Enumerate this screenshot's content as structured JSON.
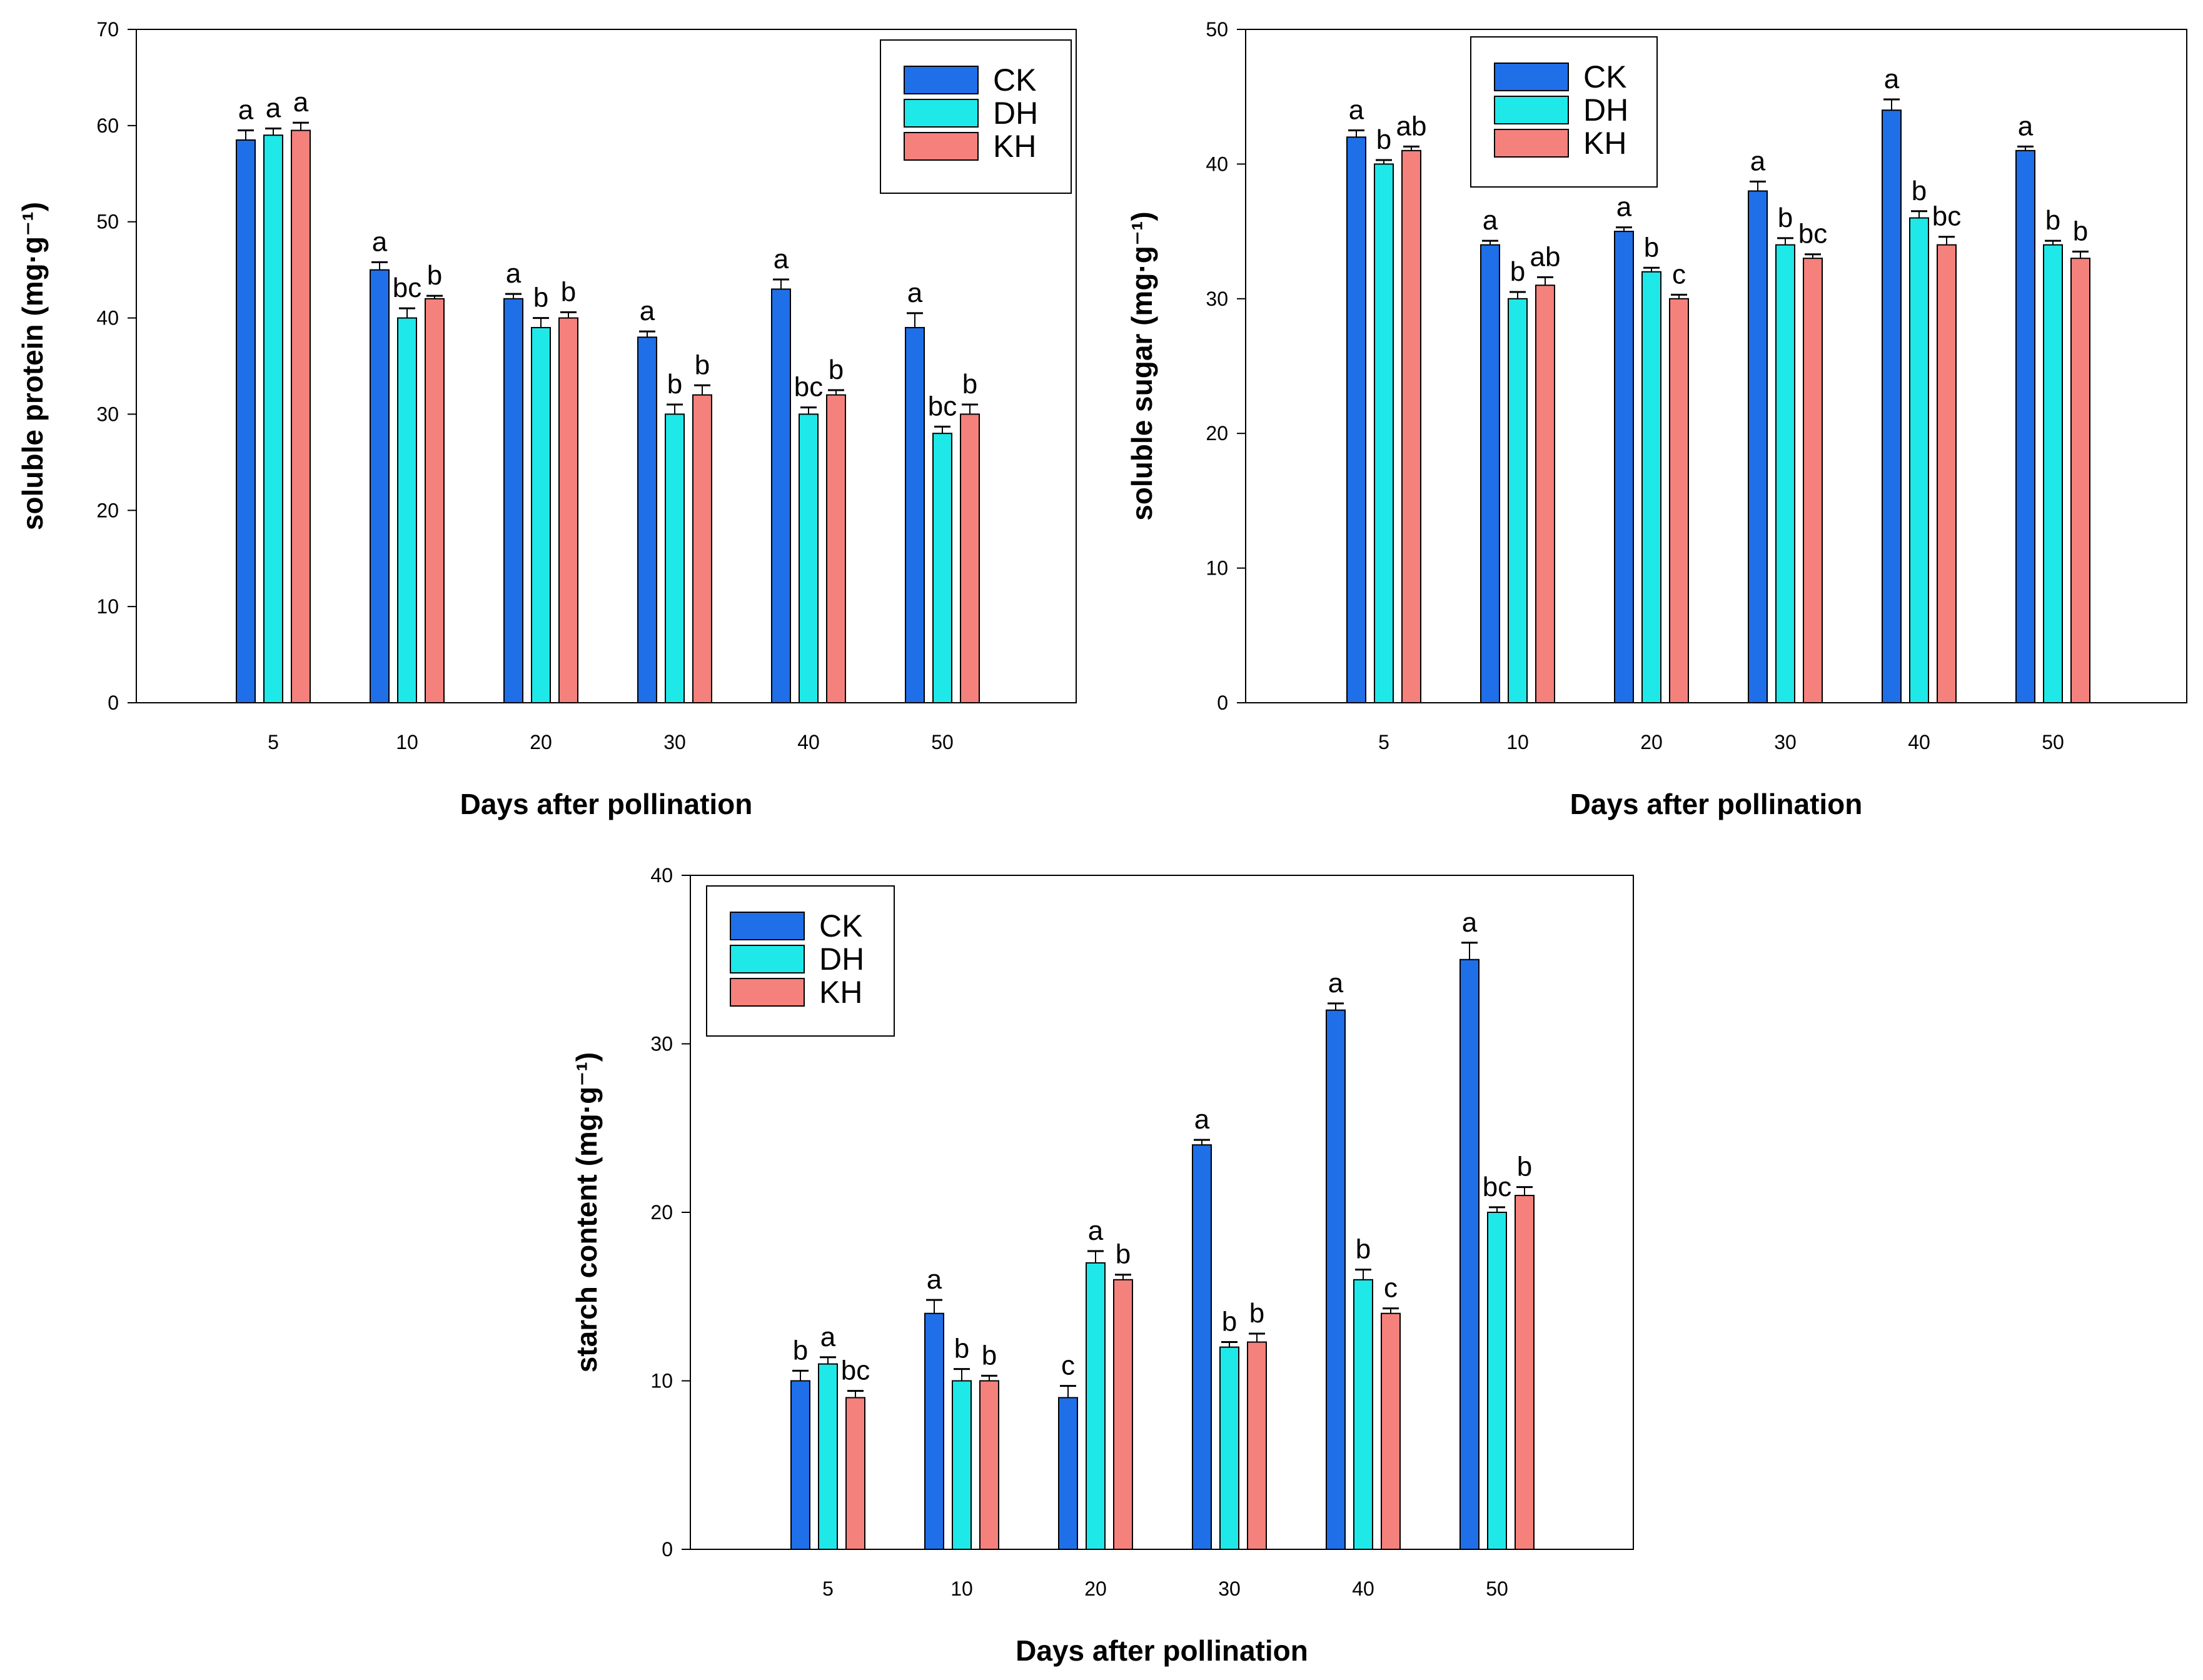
{
  "colors": {
    "CK": "#1f6fe8",
    "DH": "#1fe8e8",
    "KH": "#f4817c"
  },
  "chart_data": [
    {
      "type": "bar",
      "id": "protein",
      "categories": [
        "5",
        "10",
        "20",
        "30",
        "40",
        "50"
      ],
      "series": [
        {
          "name": "CK",
          "values": [
            58.5,
            45,
            42,
            38,
            43,
            39
          ],
          "errors": [
            1,
            0.8,
            0.5,
            0.6,
            1,
            1.5
          ],
          "labels": [
            "a",
            "a",
            "a",
            "a",
            "a",
            "a"
          ]
        },
        {
          "name": "DH",
          "values": [
            59,
            40,
            39,
            30,
            30,
            28
          ],
          "errors": [
            0.7,
            1,
            1,
            1,
            0.7,
            0.7
          ],
          "labels": [
            "a",
            "bc",
            "b",
            "b",
            "bc",
            "bc"
          ]
        },
        {
          "name": "KH",
          "values": [
            59.5,
            42,
            40,
            32,
            32,
            30
          ],
          "errors": [
            0.8,
            0.3,
            0.6,
            1,
            0.5,
            1
          ],
          "labels": [
            "a",
            "b",
            "b",
            "b",
            "b",
            "b"
          ]
        }
      ],
      "ylabel": "soluble protein (mg·g⁻¹)",
      "xlabel": "Days after pollination",
      "ylim": [
        0,
        70
      ],
      "yticks": [
        "0",
        "10",
        "20",
        "30",
        "40",
        "50",
        "60",
        "70"
      ],
      "legend": {
        "position": "top-right",
        "entries": [
          "CK",
          "DH",
          "KH"
        ]
      }
    },
    {
      "type": "bar",
      "id": "sugar",
      "categories": [
        "5",
        "10",
        "20",
        "30",
        "40",
        "50"
      ],
      "series": [
        {
          "name": "CK",
          "values": [
            42,
            34,
            35,
            38,
            44,
            41
          ],
          "errors": [
            0.5,
            0.3,
            0.3,
            0.7,
            0.8,
            0.3
          ],
          "labels": [
            "a",
            "a",
            "a",
            "a",
            "a",
            "a"
          ]
        },
        {
          "name": "DH",
          "values": [
            40,
            30,
            32,
            34,
            36,
            34
          ],
          "errors": [
            0.3,
            0.5,
            0.3,
            0.5,
            0.5,
            0.3
          ],
          "labels": [
            "b",
            "b",
            "b",
            "b",
            "b",
            "b"
          ]
        },
        {
          "name": "KH",
          "values": [
            41,
            31,
            30,
            33,
            34,
            33
          ],
          "errors": [
            0.3,
            0.6,
            0.3,
            0.3,
            0.6,
            0.5
          ],
          "labels": [
            "ab",
            "ab",
            "c",
            "bc",
            "bc",
            "b"
          ]
        }
      ],
      "ylabel": "soluble sugar (mg·g⁻¹)",
      "xlabel": "Days after pollination",
      "ylim": [
        0,
        50
      ],
      "yticks": [
        "0",
        "10",
        "20",
        "30",
        "40",
        "50"
      ],
      "legend": {
        "position": "top-left",
        "entries": [
          "CK",
          "DH",
          "KH"
        ]
      }
    },
    {
      "type": "bar",
      "id": "starch",
      "categories": [
        "5",
        "10",
        "20",
        "30",
        "40",
        "50"
      ],
      "series": [
        {
          "name": "CK",
          "values": [
            10,
            14,
            9,
            24,
            32,
            35
          ],
          "errors": [
            0.6,
            0.8,
            0.7,
            0.3,
            0.4,
            1
          ],
          "labels": [
            "b",
            "a",
            "c",
            "a",
            "a",
            "a"
          ]
        },
        {
          "name": "DH",
          "values": [
            11,
            10,
            17,
            12,
            16,
            20
          ],
          "errors": [
            0.4,
            0.7,
            0.7,
            0.3,
            0.6,
            0.3
          ],
          "labels": [
            "a",
            "b",
            "a",
            "b",
            "b",
            "bc"
          ]
        },
        {
          "name": "KH",
          "values": [
            9,
            10,
            16,
            12.3,
            14,
            21
          ],
          "errors": [
            0.4,
            0.3,
            0.3,
            0.5,
            0.3,
            0.5
          ],
          "labels": [
            "bc",
            "b",
            "b",
            "b",
            "c",
            "b"
          ]
        }
      ],
      "ylabel": "starch content (mg·g⁻¹)",
      "xlabel": "Days after pollination",
      "ylim": [
        0,
        40
      ],
      "yticks": [
        "0",
        "10",
        "20",
        "30",
        "40"
      ],
      "legend": {
        "position": "top-left",
        "entries": [
          "CK",
          "DH",
          "KH"
        ]
      }
    }
  ]
}
